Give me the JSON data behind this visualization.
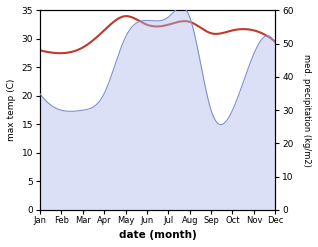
{
  "months": [
    "Jan",
    "Feb",
    "Mar",
    "Apr",
    "May",
    "Jun",
    "Jul",
    "Aug",
    "Sep",
    "Oct",
    "Nov",
    "Dec"
  ],
  "max_temp": [
    28.0,
    27.5,
    28.5,
    31.5,
    34.0,
    32.5,
    32.5,
    33.0,
    31.0,
    31.5,
    31.5,
    29.5
  ],
  "precipitation": [
    35.0,
    30.0,
    30.0,
    35.0,
    52.0,
    57.0,
    58.0,
    58.0,
    30.0,
    30.0,
    47.0,
    50.0
  ],
  "temp_color": "#c0392b",
  "precip_fill_color": "#b0bcee",
  "precip_line_color": "#8090cc",
  "ylim_temp": [
    0,
    35
  ],
  "ylim_precip": [
    0,
    60
  ],
  "xlabel": "date (month)",
  "ylabel_left": "max temp (C)",
  "ylabel_right": "med. precipitation (kg/m2)",
  "bg_color": "#ffffff",
  "yticks_left": [
    0,
    5,
    10,
    15,
    20,
    25,
    30,
    35
  ],
  "yticks_right": [
    0,
    10,
    20,
    30,
    40,
    50,
    60
  ]
}
